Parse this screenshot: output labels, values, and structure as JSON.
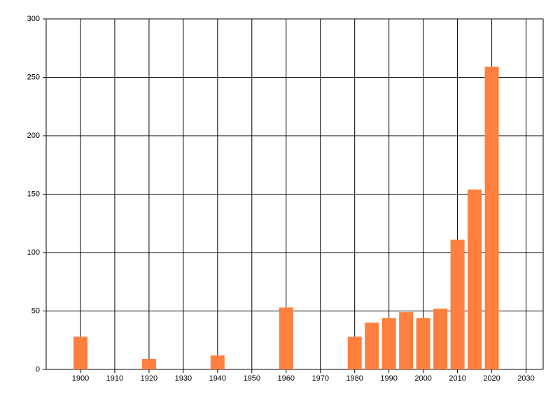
{
  "chart_data": {
    "type": "bar",
    "x": [
      1900,
      1920,
      1940,
      1960,
      1980,
      1985,
      1990,
      1995,
      2000,
      2005,
      2010,
      2015,
      2020
    ],
    "values": [
      28,
      9,
      12,
      53,
      28,
      40,
      44,
      49,
      44,
      52,
      111,
      154,
      259
    ],
    "color": "#ff7f3f",
    "xlim": [
      1890,
      2035
    ],
    "xticks": [
      1900,
      1910,
      1920,
      1930,
      1940,
      1950,
      1960,
      1970,
      1980,
      1990,
      2000,
      2010,
      2020,
      2030
    ],
    "ylim": [
      0,
      300
    ],
    "yticks": [
      0,
      50,
      100,
      150,
      200,
      250,
      300
    ],
    "grid": true
  }
}
